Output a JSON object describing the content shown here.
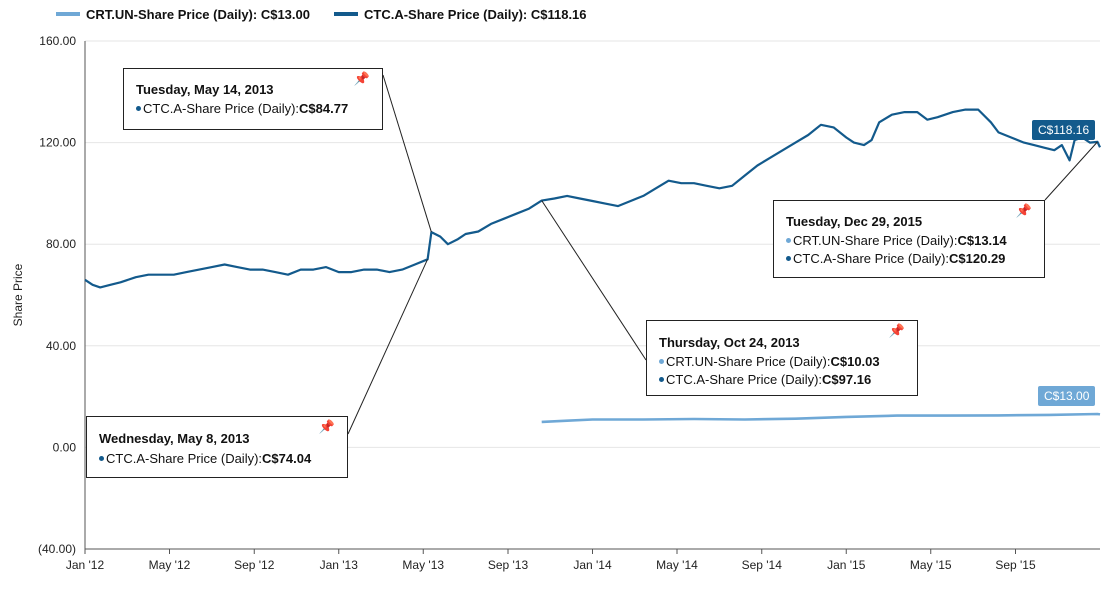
{
  "legend": [
    {
      "label": "CRT.UN-Share Price (Daily): C$13.00",
      "color": "#6fa8d6"
    },
    {
      "label": "CTC.A-Share Price (Daily): C$118.16",
      "color": "#135a8c"
    }
  ],
  "chart_data": {
    "type": "line",
    "ylabel": "Share Price",
    "ylim": [
      -40,
      160
    ],
    "yticks": [
      {
        "v": 160,
        "label": "160.00"
      },
      {
        "v": 120,
        "label": "120.00"
      },
      {
        "v": 80,
        "label": "80.00"
      },
      {
        "v": 40,
        "label": "40.00"
      },
      {
        "v": 0,
        "label": "0.00"
      },
      {
        "v": -40,
        "label": "(40.00)"
      }
    ],
    "xlim": [
      2012.0,
      2016.0
    ],
    "xticks": [
      {
        "t": 2012.0,
        "label": "Jan '12"
      },
      {
        "t": 2012.333,
        "label": "May '12"
      },
      {
        "t": 2012.667,
        "label": "Sep '12"
      },
      {
        "t": 2013.0,
        "label": "Jan '13"
      },
      {
        "t": 2013.333,
        "label": "May '13"
      },
      {
        "t": 2013.667,
        "label": "Sep '13"
      },
      {
        "t": 2014.0,
        "label": "Jan '14"
      },
      {
        "t": 2014.333,
        "label": "May '14"
      },
      {
        "t": 2014.667,
        "label": "Sep '14"
      },
      {
        "t": 2015.0,
        "label": "Jan '15"
      },
      {
        "t": 2015.333,
        "label": "May '15"
      },
      {
        "t": 2015.667,
        "label": "Sep '15"
      }
    ],
    "series": [
      {
        "name": "CTC.A-Share Price (Daily)",
        "color": "#135a8c",
        "points": [
          [
            2012.0,
            66
          ],
          [
            2012.03,
            64
          ],
          [
            2012.06,
            63
          ],
          [
            2012.1,
            64
          ],
          [
            2012.14,
            65
          ],
          [
            2012.2,
            67
          ],
          [
            2012.25,
            68
          ],
          [
            2012.3,
            68
          ],
          [
            2012.35,
            68
          ],
          [
            2012.4,
            69
          ],
          [
            2012.45,
            70
          ],
          [
            2012.5,
            71
          ],
          [
            2012.55,
            72
          ],
          [
            2012.6,
            71
          ],
          [
            2012.65,
            70
          ],
          [
            2012.7,
            70
          ],
          [
            2012.75,
            69
          ],
          [
            2012.8,
            68
          ],
          [
            2012.85,
            70
          ],
          [
            2012.9,
            70
          ],
          [
            2012.95,
            71
          ],
          [
            2013.0,
            69
          ],
          [
            2013.05,
            69
          ],
          [
            2013.1,
            70
          ],
          [
            2013.15,
            70
          ],
          [
            2013.2,
            69
          ],
          [
            2013.25,
            70
          ],
          [
            2013.3,
            72
          ],
          [
            2013.35,
            74.04
          ],
          [
            2013.365,
            84.77
          ],
          [
            2013.4,
            83
          ],
          [
            2013.43,
            80
          ],
          [
            2013.47,
            82
          ],
          [
            2013.5,
            84
          ],
          [
            2013.55,
            85
          ],
          [
            2013.6,
            88
          ],
          [
            2013.65,
            90
          ],
          [
            2013.7,
            92
          ],
          [
            2013.75,
            94
          ],
          [
            2013.8,
            97.16
          ],
          [
            2013.85,
            98
          ],
          [
            2013.9,
            99
          ],
          [
            2013.95,
            98
          ],
          [
            2014.0,
            97
          ],
          [
            2014.05,
            96
          ],
          [
            2014.1,
            95
          ],
          [
            2014.15,
            97
          ],
          [
            2014.2,
            99
          ],
          [
            2014.25,
            102
          ],
          [
            2014.3,
            105
          ],
          [
            2014.35,
            104
          ],
          [
            2014.4,
            104
          ],
          [
            2014.45,
            103
          ],
          [
            2014.5,
            102
          ],
          [
            2014.55,
            103
          ],
          [
            2014.6,
            107
          ],
          [
            2014.65,
            111
          ],
          [
            2014.7,
            114
          ],
          [
            2014.75,
            117
          ],
          [
            2014.8,
            120
          ],
          [
            2014.85,
            123
          ],
          [
            2014.9,
            127
          ],
          [
            2014.95,
            126
          ],
          [
            2015.0,
            122
          ],
          [
            2015.03,
            120
          ],
          [
            2015.07,
            119
          ],
          [
            2015.1,
            121
          ],
          [
            2015.13,
            128
          ],
          [
            2015.18,
            131
          ],
          [
            2015.23,
            132
          ],
          [
            2015.28,
            132
          ],
          [
            2015.32,
            129
          ],
          [
            2015.36,
            130
          ],
          [
            2015.42,
            132
          ],
          [
            2015.47,
            133
          ],
          [
            2015.52,
            133
          ],
          [
            2015.57,
            128
          ],
          [
            2015.6,
            124
          ],
          [
            2015.65,
            122
          ],
          [
            2015.7,
            120
          ],
          [
            2015.74,
            119
          ],
          [
            2015.78,
            118
          ],
          [
            2015.82,
            117
          ],
          [
            2015.85,
            119
          ],
          [
            2015.88,
            113
          ],
          [
            2015.9,
            121
          ],
          [
            2015.93,
            122
          ],
          [
            2015.96,
            120
          ],
          [
            2015.99,
            120.29
          ],
          [
            2016.0,
            118.16
          ]
        ]
      },
      {
        "name": "CRT.UN-Share Price (Daily)",
        "color": "#6fa8d6",
        "points": [
          [
            2013.8,
            10.03
          ],
          [
            2013.9,
            10.5
          ],
          [
            2014.0,
            11
          ],
          [
            2014.2,
            11
          ],
          [
            2014.4,
            11.2
          ],
          [
            2014.6,
            11
          ],
          [
            2014.8,
            11.3
          ],
          [
            2015.0,
            12
          ],
          [
            2015.2,
            12.5
          ],
          [
            2015.4,
            12.5
          ],
          [
            2015.6,
            12.6
          ],
          [
            2015.8,
            12.8
          ],
          [
            2015.99,
            13.14
          ],
          [
            2016.0,
            13.0
          ]
        ]
      }
    ],
    "tags": [
      {
        "label": "C$118.16",
        "value": 118.16,
        "color": "#135a8c"
      },
      {
        "label": "C$13.00",
        "value": 13.0,
        "color": "#6fa8d6"
      }
    ],
    "callouts": [
      {
        "id": "may14",
        "date": "Tuesday, May 14, 2013",
        "anchor_t": 2013.365,
        "anchor_v": 84.77,
        "rows": [
          {
            "label": "CTC.A-Share Price (Daily): ",
            "value": "C$84.77",
            "color": "#135a8c"
          }
        ]
      },
      {
        "id": "may8",
        "date": "Wednesday, May 8, 2013",
        "anchor_t": 2013.35,
        "anchor_v": 74.04,
        "rows": [
          {
            "label": "CTC.A-Share Price (Daily): ",
            "value": "C$74.04",
            "color": "#135a8c"
          }
        ]
      },
      {
        "id": "oct24",
        "date": "Thursday, Oct 24, 2013",
        "anchor_t": 2013.8,
        "anchor_v": 97.16,
        "rows": [
          {
            "label": "CRT.UN-Share Price (Daily): ",
            "value": "C$10.03",
            "color": "#6fa8d6"
          },
          {
            "label": "CTC.A-Share Price (Daily): ",
            "value": "C$97.16",
            "color": "#135a8c"
          }
        ]
      },
      {
        "id": "dec29",
        "date": "Tuesday, Dec 29, 2015",
        "anchor_t": 2015.99,
        "anchor_v": 120.29,
        "rows": [
          {
            "label": "CRT.UN-Share Price (Daily): ",
            "value": "C$13.14",
            "color": "#6fa8d6"
          },
          {
            "label": "CTC.A-Share Price (Daily): ",
            "value": "C$120.29",
            "color": "#135a8c"
          }
        ]
      }
    ]
  }
}
